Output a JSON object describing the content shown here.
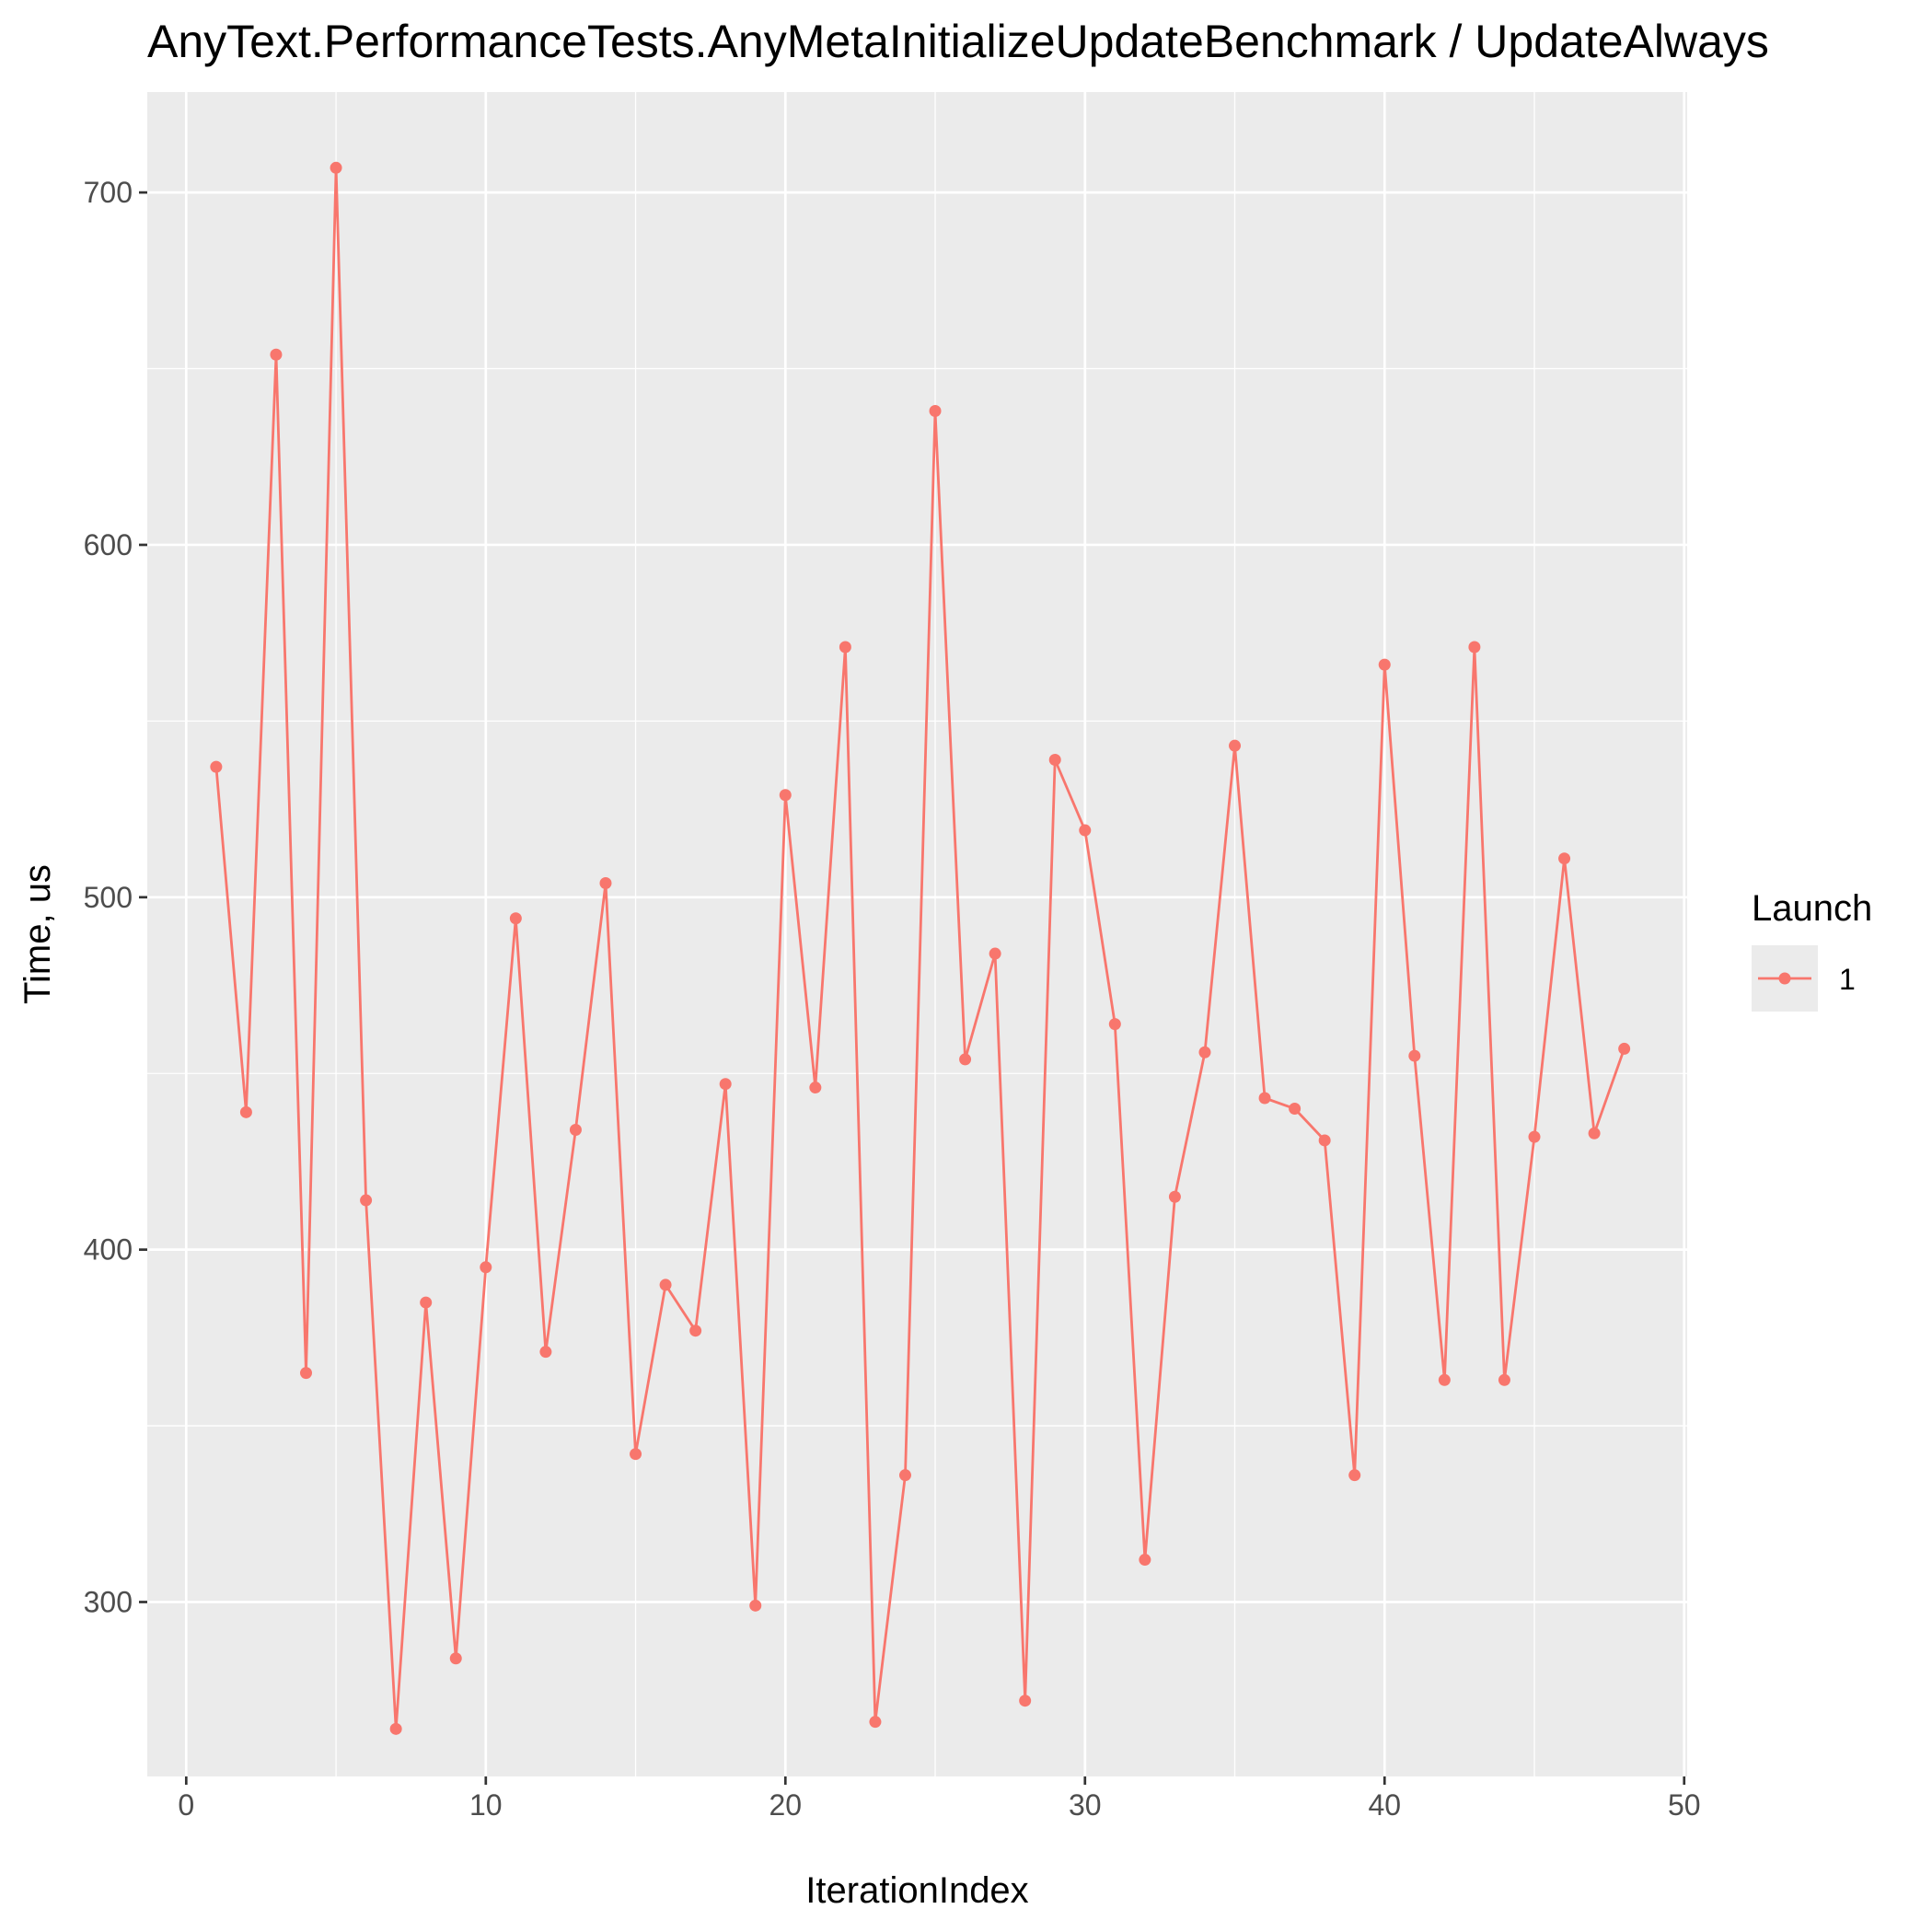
{
  "chart_data": {
    "type": "line",
    "title": "AnyText.PerformanceTests.AnyMetaInitializeUpdateBenchmark / UpdateAlways",
    "xlabel": "IterationIndex",
    "ylabel": "Time, us",
    "xlim": [
      -1.3,
      50.1
    ],
    "ylim": [
      250.5,
      728.5
    ],
    "x_ticks": [
      0,
      10,
      20,
      30,
      40,
      50
    ],
    "x_tick_labels": [
      "0",
      "10",
      "20",
      "30",
      "40",
      "50"
    ],
    "y_ticks": [
      300,
      400,
      500,
      600,
      700
    ],
    "y_tick_labels": [
      "300",
      "400",
      "500",
      "600",
      "700"
    ],
    "x_minor_ticks": [
      5,
      15,
      25,
      35,
      45
    ],
    "y_minor_ticks": [
      250,
      350,
      450,
      550,
      650
    ],
    "grid": true,
    "panel_background": "#ebebeb",
    "grid_color": "#ffffff",
    "legend": {
      "title": "Launch",
      "position": "right"
    },
    "series": [
      {
        "name": "1",
        "color": "#f8766d",
        "x": [
          1,
          2,
          3,
          4,
          5,
          6,
          7,
          8,
          9,
          10,
          11,
          12,
          13,
          14,
          15,
          16,
          17,
          18,
          19,
          20,
          21,
          22,
          23,
          24,
          25,
          26,
          27,
          28,
          29,
          30,
          31,
          32,
          33,
          34,
          35,
          36,
          37,
          38,
          39,
          40,
          41,
          42,
          43,
          44,
          45,
          46,
          47,
          48
        ],
        "values": [
          537,
          439,
          654,
          365,
          707,
          414,
          264,
          385,
          284,
          395,
          494,
          371,
          434,
          504,
          342,
          390,
          377,
          447,
          299,
          529,
          446,
          571,
          266,
          336,
          638,
          454,
          484,
          272,
          539,
          519,
          464,
          312,
          415,
          456,
          543,
          443,
          440,
          431,
          336,
          566,
          455,
          363,
          571,
          363,
          432,
          511,
          433,
          457
        ]
      }
    ]
  }
}
